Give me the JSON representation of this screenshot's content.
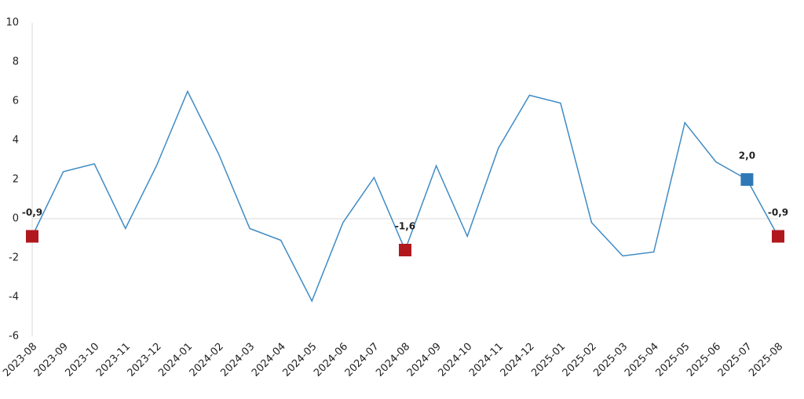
{
  "chart_data": {
    "type": "line",
    "categories": [
      "2023-08",
      "2023-09",
      "2023-10",
      "2023-11",
      "2023-12",
      "2024-01",
      "2024-02",
      "2024-03",
      "2024-04",
      "2024-05",
      "2024-06",
      "2024-07",
      "2024-08",
      "2024-09",
      "2024-10",
      "2024-11",
      "2024-12",
      "2025-01",
      "2025-02",
      "2025-03",
      "2025-04",
      "2025-05",
      "2025-06",
      "2025-07",
      "2025-08"
    ],
    "values": [
      -0.9,
      2.4,
      2.8,
      -0.5,
      2.7,
      6.5,
      3.3,
      -0.5,
      -1.1,
      -4.2,
      -0.2,
      2.1,
      -1.6,
      2.7,
      -0.9,
      3.6,
      6.3,
      5.9,
      -0.2,
      -1.9,
      -1.7,
      4.9,
      2.9,
      2.0,
      -0.9
    ],
    "value_labels": [
      "-0,9",
      null,
      null,
      null,
      null,
      null,
      null,
      null,
      null,
      null,
      null,
      null,
      "-1,6",
      null,
      null,
      null,
      null,
      null,
      null,
      null,
      null,
      null,
      null,
      "2,0",
      "-0,9"
    ],
    "marker_colors": [
      "#b0181e",
      null,
      null,
      null,
      null,
      null,
      null,
      null,
      null,
      null,
      null,
      null,
      "#b0181e",
      null,
      null,
      null,
      null,
      null,
      null,
      null,
      null,
      null,
      null,
      "#2e78b7",
      "#b0181e"
    ],
    "color": "#3f8bc4",
    "ylim": [
      -6,
      10
    ],
    "yticks": [
      -6,
      -4,
      -2,
      0,
      2,
      4,
      6,
      8,
      10
    ]
  }
}
